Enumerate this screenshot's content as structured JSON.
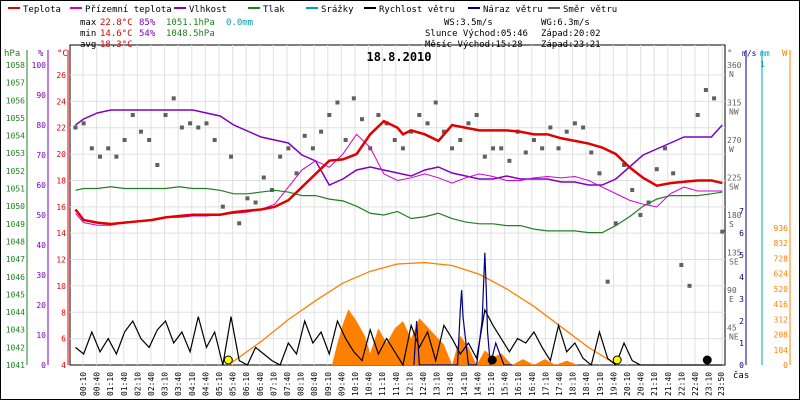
{
  "chart_data": {
    "type": "line",
    "title": "18.8.2010",
    "legend": [
      {
        "name": "Teplota",
        "color": "#e00000"
      },
      {
        "name": "Přízemní teplota",
        "color": "#d000d0"
      },
      {
        "name": "Vlhkost",
        "color": "#8000c0"
      },
      {
        "name": "Tlak",
        "color": "#208020"
      },
      {
        "name": "Srážky",
        "color": "#00a0c0"
      },
      {
        "name": "Rychlost větru",
        "color": "#000000"
      },
      {
        "name": "Náraz větru",
        "color": "#000080"
      },
      {
        "name": "Směr větru",
        "color": "#606060"
      }
    ],
    "stats": {
      "max": {
        "label": "max",
        "temp": "22.8°C",
        "hum": "85%",
        "press": "1051.1hPa",
        "rain": "0.0mm"
      },
      "min": {
        "label": "min",
        "temp": "14.6°C",
        "hum": "54%",
        "press": "1048.5hPa"
      },
      "avg": {
        "label": "avg",
        "temp": "18.3°C"
      }
    },
    "info": {
      "ws": "WS:3.5m/s",
      "wg": "WG:6.3m/s",
      "sun": "Slunce Východ:05:46",
      "sun_set": "Západ:20:02",
      "moon": "Měsíc  Východ:15:28",
      "moon_set": "Západ:23:21"
    },
    "axes": {
      "hpa": {
        "label": "hPa",
        "ticks": [
          "1058",
          "1057",
          "1056",
          "1055",
          "1054",
          "1053",
          "1052",
          "1051",
          "1050",
          "1049",
          "1048",
          "1047",
          "1046",
          "1045",
          "1044",
          "1043",
          "1042",
          "1041"
        ]
      },
      "pct": {
        "label": "%",
        "ticks": [
          "100",
          "90",
          "80",
          "70",
          "60",
          "50",
          "40",
          "30",
          "20",
          "10",
          "0"
        ]
      },
      "temp": {
        "label": "°C",
        "ticks": [
          "26",
          "24",
          "22",
          "20",
          "18",
          "16",
          "14",
          "12",
          "10",
          "8",
          "6",
          "4"
        ]
      },
      "dir": {
        "label": "°",
        "ticks": [
          "360",
          "315",
          "270",
          "225",
          "180",
          "135",
          "90",
          "45"
        ],
        "names": [
          "N",
          "NW",
          "W",
          "SW",
          "S",
          "SE",
          "E",
          "NE"
        ]
      },
      "ms": {
        "label": "m/s",
        "ticks": [
          "7",
          "6",
          "5",
          "4",
          "3",
          "2",
          "1",
          "0"
        ]
      },
      "mm": {
        "label": "mm",
        "ticks": [
          "1"
        ]
      },
      "wm2": {
        "label": "W",
        "ticks": [
          "936",
          "832",
          "728",
          "624",
          "520",
          "416",
          "312",
          "208",
          "104",
          "0"
        ]
      },
      "time": {
        "label": "čas",
        "ticks": [
          "00:10",
          "00:40",
          "01:10",
          "01:40",
          "02:10",
          "02:40",
          "03:10",
          "03:40",
          "04:10",
          "04:40",
          "05:10",
          "05:40",
          "06:10",
          "06:40",
          "07:10",
          "07:40",
          "08:10",
          "08:40",
          "09:10",
          "09:40",
          "10:10",
          "10:40",
          "11:10",
          "11:40",
          "12:10",
          "12:40",
          "13:10",
          "13:40",
          "14:10",
          "14:40",
          "15:10",
          "15:40",
          "16:10",
          "16:40",
          "17:10",
          "17:40",
          "18:10",
          "18:40",
          "19:10",
          "19:40",
          "20:10",
          "20:40",
          "21:10",
          "21:40",
          "22:10",
          "22:40",
          "23:10",
          "23:50"
        ]
      }
    },
    "series": {
      "temperature": {
        "color": "#e00000",
        "x_hours": [
          0.2,
          0.5,
          1,
          1.5,
          2,
          2.5,
          3,
          3.5,
          4,
          4.5,
          5,
          5.5,
          6,
          6.5,
          7,
          7.5,
          8,
          8.5,
          9,
          9.5,
          10,
          10.5,
          11,
          11.5,
          12,
          12.2,
          12.5,
          13,
          13.5,
          14,
          14.5,
          15,
          15.5,
          16,
          16.5,
          17,
          17.5,
          18,
          18.5,
          19,
          19.5,
          20,
          20.5,
          21,
          21.5,
          22,
          22.5,
          23,
          23.5,
          23.9
        ],
        "y_celsius": [
          15.8,
          15,
          14.8,
          14.7,
          14.8,
          14.9,
          15,
          15.2,
          15.3,
          15.4,
          15.4,
          15.4,
          15.6,
          15.7,
          15.8,
          16,
          16.5,
          17.5,
          18.5,
          19.5,
          19.6,
          20,
          21.5,
          22.5,
          22,
          21.5,
          21.8,
          21.5,
          21,
          22.2,
          22,
          21.8,
          21.8,
          21.8,
          21.7,
          21.5,
          21.5,
          21.2,
          21,
          20.8,
          20.5,
          20,
          19,
          18.2,
          17.6,
          17.8,
          17.9,
          18,
          18,
          17.8
        ]
      },
      "ground_temp": {
        "color": "#d000d0",
        "x_hours": [
          0.2,
          0.5,
          1,
          1.5,
          2,
          2.5,
          3,
          3.5,
          4,
          4.5,
          5,
          5.5,
          6,
          6.5,
          7,
          7.5,
          8,
          8.5,
          9,
          9.5,
          10,
          10.5,
          11,
          11.5,
          12,
          12.5,
          13,
          13.5,
          14,
          14.5,
          15,
          15.5,
          16,
          16.5,
          17,
          17.5,
          18,
          18.5,
          19,
          19.5,
          20,
          20.5,
          21,
          21.5,
          22,
          22.5,
          23,
          23.5,
          23.9
        ],
        "y_celsius": [
          15.5,
          14.8,
          14.6,
          14.6,
          14.8,
          14.9,
          15,
          15.2,
          15.2,
          15.3,
          15.3,
          15.4,
          15.5,
          15.6,
          15.8,
          16.2,
          17.5,
          18.8,
          19.5,
          19,
          20,
          21.5,
          20.5,
          18.5,
          18,
          18.2,
          18.5,
          18.2,
          17.8,
          18.2,
          18.5,
          18.3,
          18,
          18,
          18.2,
          18.3,
          18.2,
          18.3,
          18,
          17.5,
          17,
          16.5,
          16.2,
          16,
          17,
          17.5,
          17.2,
          17.2,
          17.2
        ]
      },
      "humidity": {
        "color": "#8000c0",
        "x_hours": [
          0.2,
          0.5,
          1,
          1.5,
          2,
          2.5,
          3,
          3.5,
          4,
          4.5,
          5,
          5.5,
          6,
          6.5,
          7,
          7.5,
          8,
          8.5,
          9,
          9.5,
          10,
          10.5,
          11,
          11.5,
          12,
          12.5,
          13,
          13.5,
          14,
          14.5,
          15,
          15.5,
          16,
          16.5,
          17,
          17.5,
          18,
          18.5,
          19,
          19.5,
          20,
          20.5,
          21,
          21.5,
          22,
          22.5,
          23,
          23.5,
          23.9
        ],
        "y_pct": [
          80,
          82,
          84,
          85,
          85,
          85,
          85,
          85,
          85,
          85,
          84,
          83,
          80,
          78,
          76,
          75,
          74,
          70,
          68,
          60,
          62,
          65,
          66,
          65,
          64,
          63,
          65,
          66,
          64,
          63,
          62,
          62,
          63,
          62,
          62,
          62,
          61,
          61,
          60,
          60,
          62,
          66,
          70,
          72,
          74,
          76,
          76,
          76,
          80
        ]
      },
      "pressure": {
        "color": "#208020",
        "x_hours": [
          0.2,
          0.5,
          1,
          1.5,
          2,
          2.5,
          3,
          3.5,
          4,
          4.5,
          5,
          5.5,
          6,
          6.5,
          7,
          7.5,
          8,
          8.5,
          9,
          9.5,
          10,
          10.5,
          11,
          11.5,
          12,
          12.5,
          13,
          13.5,
          14,
          14.5,
          15,
          15.5,
          16,
          16.5,
          17,
          17.5,
          18,
          18.5,
          19,
          19.5,
          20,
          20.5,
          21,
          21.5,
          22,
          22.5,
          23,
          23.5,
          23.9
        ],
        "y_hpa": [
          1050.9,
          1051,
          1051,
          1051.1,
          1051,
          1051,
          1051,
          1051,
          1051.1,
          1051,
          1051,
          1050.9,
          1050.7,
          1050.7,
          1050.8,
          1050.9,
          1050.8,
          1050.6,
          1050.6,
          1050.4,
          1050.3,
          1050,
          1049.6,
          1049.5,
          1049.7,
          1049.3,
          1049.4,
          1049.6,
          1049.3,
          1049.1,
          1049,
          1049,
          1048.9,
          1048.9,
          1048.7,
          1048.6,
          1048.6,
          1048.6,
          1048.5,
          1048.5,
          1048.9,
          1049.4,
          1050,
          1050.4,
          1050.6,
          1050.6,
          1050.6,
          1050.7,
          1050.8
        ]
      },
      "wind_speed": {
        "color": "#000000",
        "x_hours": [
          0.2,
          0.5,
          0.8,
          1.1,
          1.4,
          1.7,
          2,
          2.3,
          2.6,
          2.9,
          3.2,
          3.5,
          3.8,
          4.1,
          4.4,
          4.7,
          5,
          5.3,
          5.6,
          5.9,
          6.2,
          6.5,
          6.8,
          7.1,
          7.4,
          7.7,
          8,
          8.3,
          8.6,
          8.9,
          9.2,
          9.5,
          9.8,
          10.1,
          10.4,
          10.7,
          11,
          11.3,
          11.6,
          11.9,
          12.2,
          12.5,
          12.8,
          13.1,
          13.4,
          13.7,
          14,
          14.3,
          14.6,
          14.9,
          15.2,
          15.5,
          15.8,
          16.1,
          16.4,
          16.7,
          17,
          17.3,
          17.6,
          17.9,
          18.2,
          18.5,
          18.8,
          19.1,
          19.4,
          19.7,
          20,
          20.3,
          20.6,
          20.9,
          21.2,
          21.5,
          21.8,
          22.1,
          22.4,
          22.7,
          23,
          23.3,
          23.6,
          23.9
        ],
        "y_ms": [
          0.8,
          0.5,
          1.5,
          0.6,
          1.2,
          0.5,
          1.5,
          2,
          1.2,
          0.8,
          1.6,
          2,
          1,
          1.5,
          0.6,
          2.2,
          0.8,
          1.5,
          0,
          2.2,
          0.2,
          0,
          0.8,
          0.5,
          0.2,
          0,
          1,
          0.5,
          2,
          1,
          1.5,
          0.5,
          2,
          1.2,
          0.6,
          0.2,
          1.6,
          0.5,
          1.2,
          0.6,
          0,
          1.8,
          0.8,
          1.5,
          0.2,
          1.8,
          1.2,
          0.5,
          1,
          0.3,
          2.5,
          1.8,
          1.2,
          0.6,
          1.2,
          1,
          1.5,
          0.8,
          0.2,
          1.8,
          0.6,
          1,
          0.3,
          0,
          1.5,
          0.3,
          0,
          1,
          0.2,
          0,
          0,
          0,
          0,
          0,
          0,
          0,
          0,
          0,
          0,
          0
        ]
      },
      "wind_gust": {
        "color": "#000080",
        "x_hours": [
          12.6,
          12.7,
          12.8,
          14.2,
          14.3,
          14.35,
          14.4,
          14.6,
          14.9,
          15,
          15.1,
          15.2,
          15.25,
          15.3,
          15.4,
          15.6,
          15.9,
          16.2
        ],
        "y_ms": [
          0,
          2,
          0,
          0,
          2.5,
          3.4,
          2.2,
          0,
          0,
          1,
          2,
          5.1,
          3.5,
          1.5,
          0,
          1,
          0,
          0
        ]
      },
      "wind_dir": {
        "color": "#606060",
        "x_hours": [
          0.2,
          0.5,
          0.8,
          1.1,
          1.4,
          1.7,
          2,
          2.3,
          2.6,
          2.9,
          3.2,
          3.5,
          3.8,
          4.1,
          4.4,
          4.7,
          5,
          5.3,
          5.6,
          5.9,
          6.2,
          6.5,
          6.8,
          7.1,
          7.4,
          7.7,
          8,
          8.3,
          8.6,
          8.9,
          9.2,
          9.5,
          9.8,
          10.1,
          10.4,
          10.7,
          11,
          11.3,
          11.6,
          11.9,
          12.2,
          12.5,
          12.8,
          13.1,
          13.4,
          13.7,
          14,
          14.3,
          14.6,
          14.9,
          15.2,
          15.5,
          15.8,
          16.1,
          16.4,
          16.7,
          17,
          17.3,
          17.6,
          17.9,
          18.2,
          18.5,
          18.8,
          19.1,
          19.4,
          19.7,
          20,
          20.3,
          20.6,
          20.9,
          21.2,
          21.5,
          21.8,
          22.1,
          22.4,
          22.7,
          23,
          23.3,
          23.6,
          23.9
        ],
        "y_deg": [
          285,
          290,
          260,
          250,
          260,
          250,
          270,
          300,
          280,
          270,
          240,
          300,
          320,
          285,
          290,
          285,
          290,
          270,
          190,
          250,
          170,
          200,
          195,
          225,
          210,
          250,
          260,
          230,
          275,
          260,
          280,
          300,
          315,
          270,
          320,
          295,
          260,
          300,
          290,
          270,
          260,
          280,
          300,
          290,
          315,
          280,
          260,
          270,
          290,
          300,
          250,
          260,
          260,
          245,
          280,
          255,
          270,
          260,
          285,
          260,
          280,
          290,
          285,
          255,
          230,
          100,
          170,
          240,
          210,
          180,
          195,
          235,
          260,
          230,
          120,
          95,
          300,
          330,
          320,
          160
        ]
      },
      "solar_radiation": {
        "color": "#ff8000",
        "x_hours": [
          5.8,
          7,
          8,
          9,
          10,
          11,
          12,
          13,
          14,
          15,
          16,
          17,
          18,
          19,
          20.05
        ],
        "y_wm2": [
          0,
          160,
          310,
          440,
          560,
          640,
          690,
          700,
          680,
          620,
          520,
          400,
          260,
          120,
          0
        ]
      },
      "rain_area": {
        "color": "#ff8000",
        "x_hours": [
          9.6,
          9.8,
          10,
          10.2,
          10.5,
          10.8,
          11,
          11.3,
          11.6,
          11.9,
          12.2,
          12.5,
          12.8,
          13.1,
          13.4,
          13.7,
          14,
          14.3,
          14.6,
          14.9,
          15.2,
          15.5,
          15.8,
          16.2,
          16.6,
          17,
          17.4,
          17.8,
          18.2,
          18.6
        ],
        "y_wm2": [
          0,
          150,
          280,
          380,
          300,
          200,
          80,
          250,
          150,
          250,
          300,
          180,
          320,
          260,
          200,
          140,
          0,
          200,
          120,
          0,
          100,
          50,
          80,
          0,
          40,
          0,
          40,
          0,
          30,
          0
        ]
      }
    },
    "markers": [
      {
        "x_hour": 5.8,
        "label": "sunrise",
        "color": "#ffff00"
      },
      {
        "x_hour": 15.47,
        "label": "moonrise",
        "color": "#000000"
      },
      {
        "x_hour": 20.05,
        "label": "sunset",
        "color": "#ffff00"
      },
      {
        "x_hour": 23.35,
        "label": "moonset",
        "color": "#000000"
      }
    ]
  }
}
